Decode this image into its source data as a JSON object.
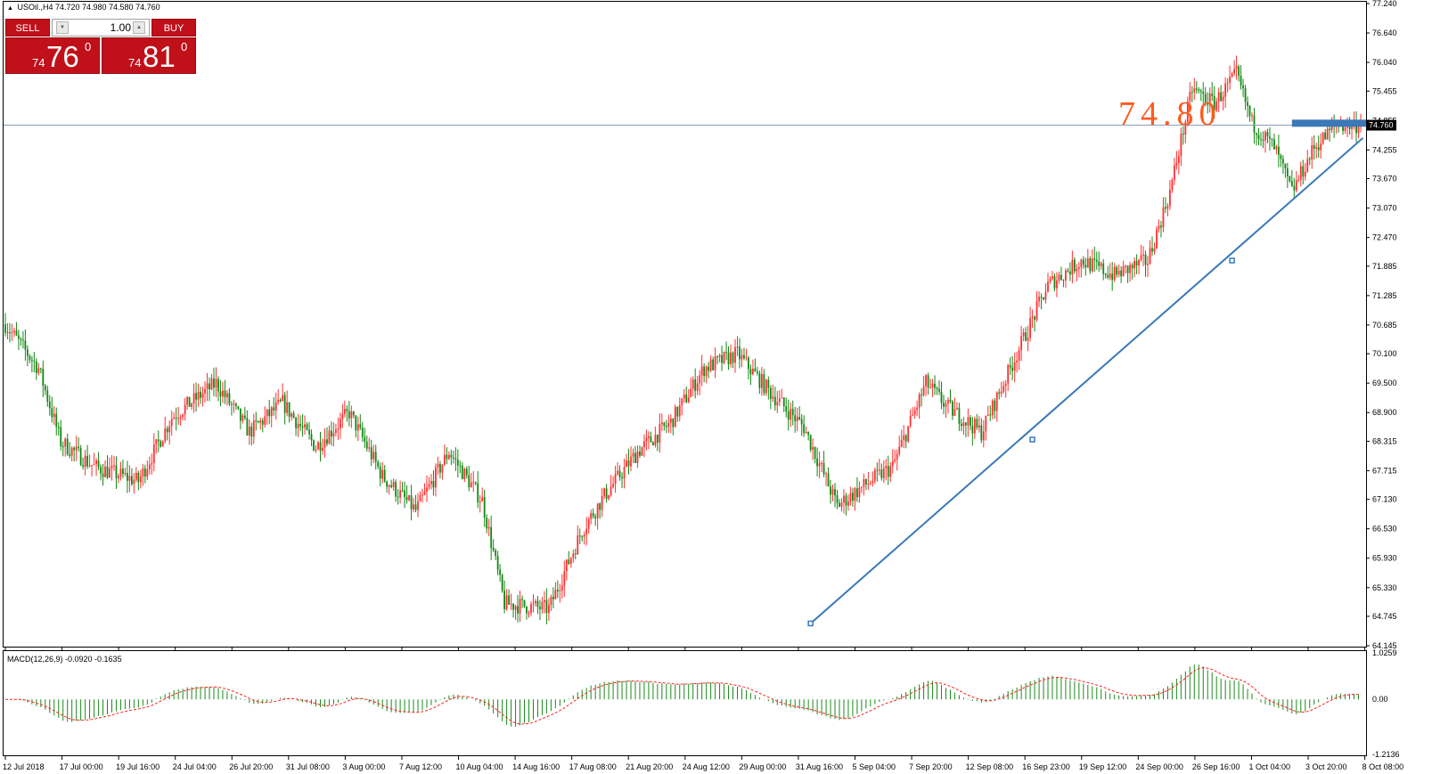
{
  "header": {
    "symbol_timeframe": "USOil.,H4",
    "ohlc": "74.720 74.980 74.580 74.760",
    "arrow": "▲"
  },
  "trade_panel": {
    "sell_label": "SELL",
    "buy_label": "BUY",
    "volume": "1.00",
    "sell_small": "74",
    "sell_big": "76",
    "sell_sup": "0",
    "buy_small": "74",
    "buy_big": "81",
    "buy_sup": "0",
    "color": "#c0101a"
  },
  "annotation": {
    "label": "74.80",
    "color": "#ff5a1f"
  },
  "macd": {
    "label": "MACD(12,26,9) -0.0920 -0.1635"
  },
  "chart_data": {
    "type": "candlestick",
    "symbol": "USOil.",
    "timeframe": "H4",
    "ylim": [
      64.145,
      77.24
    ],
    "y_ticks": [
      "77.240",
      "76.640",
      "76.040",
      "75.455",
      "74.855",
      "74.255",
      "73.670",
      "73.070",
      "72.470",
      "71.885",
      "71.285",
      "70.685",
      "70.100",
      "69.500",
      "68.900",
      "68.315",
      "67.715",
      "67.130",
      "66.530",
      "65.930",
      "65.330",
      "64.745",
      "64.145"
    ],
    "current_price": 74.76,
    "current_price_label": "74.760",
    "horizontal_line": 74.8,
    "x_labels": [
      "12 Jul 2018",
      "17 Jul 00:00",
      "19 Jul 16:00",
      "24 Jul 04:00",
      "26 Jul 20:00",
      "31 Jul 08:00",
      "3 Aug 00:00",
      "7 Aug 12:00",
      "10 Aug 04:00",
      "14 Aug 16:00",
      "17 Aug 08:00",
      "21 Aug 20:00",
      "24 Aug 12:00",
      "29 Aug 00:00",
      "31 Aug 16:00",
      "5 Sep 04:00",
      "7 Sep 20:00",
      "12 Sep 08:00",
      "16 Sep 23:00",
      "19 Sep 12:00",
      "24 Sep 00:00",
      "26 Sep 16:00",
      "1 Oct 04:00",
      "3 Oct 20:00",
      "8 Oct 08:00"
    ],
    "close_path": [
      [
        0,
        70.7
      ],
      [
        15,
        69.8
      ],
      [
        25,
        68.3
      ],
      [
        40,
        67.8
      ],
      [
        60,
        67.5
      ],
      [
        75,
        68.8
      ],
      [
        95,
        69.5
      ],
      [
        110,
        68.5
      ],
      [
        125,
        69.1
      ],
      [
        140,
        68.2
      ],
      [
        155,
        68.9
      ],
      [
        170,
        67.6
      ],
      [
        185,
        66.9
      ],
      [
        200,
        68.1
      ],
      [
        215,
        67.1
      ],
      [
        225,
        65.0
      ],
      [
        245,
        64.9
      ],
      [
        260,
        66.5
      ],
      [
        270,
        67.2
      ],
      [
        285,
        68.1
      ],
      [
        300,
        68.7
      ],
      [
        315,
        69.8
      ],
      [
        330,
        70.1
      ],
      [
        345,
        69.3
      ],
      [
        360,
        68.6
      ],
      [
        375,
        67.0
      ],
      [
        390,
        67.5
      ],
      [
        400,
        67.8
      ],
      [
        415,
        69.5
      ],
      [
        425,
        69.0
      ],
      [
        440,
        68.5
      ],
      [
        455,
        70.0
      ],
      [
        470,
        71.5
      ],
      [
        485,
        72.0
      ],
      [
        500,
        71.7
      ],
      [
        515,
        72.0
      ],
      [
        525,
        73.4
      ],
      [
        535,
        75.5
      ],
      [
        545,
        75.2
      ],
      [
        555,
        75.8
      ],
      [
        562,
        74.8
      ],
      [
        572,
        74.3
      ],
      [
        580,
        73.4
      ],
      [
        590,
        74.3
      ],
      [
        600,
        74.76
      ]
    ],
    "trendline": {
      "from": [
        363,
        64.6
      ],
      "to": [
        612,
        74.5
      ]
    },
    "macd": {
      "label": "MACD(12,26,9)",
      "main": -0.092,
      "signal": -0.1635,
      "y_ticks": [
        "1.0259",
        "0.00",
        "-1.2136"
      ],
      "ylim": [
        -1.2136,
        1.0259
      ]
    }
  },
  "colors": {
    "bull": "#ff3030",
    "bear": "#118811",
    "trendline": "#3a78b8",
    "price_line": "#8a9db5",
    "macd_hist": "#1b8a1b",
    "macd_signal": "#ff2020"
  }
}
